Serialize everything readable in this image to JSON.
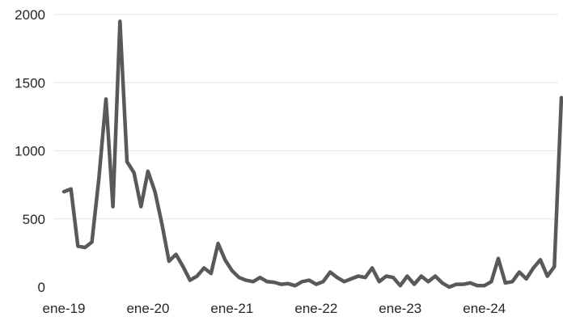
{
  "chart_data": {
    "type": "line",
    "title": "",
    "xlabel": "",
    "ylabel": "",
    "ylim": [
      0,
      2000
    ],
    "y_ticks": [
      0,
      500,
      1000,
      1500,
      2000
    ],
    "grid": true,
    "legend": "none",
    "line_color": "#595959",
    "x_tick_labels": [
      {
        "label": "ene-19",
        "index": 0
      },
      {
        "label": "ene-20",
        "index": 12
      },
      {
        "label": "ene-21",
        "index": 24
      },
      {
        "label": "ene-22",
        "index": 36
      },
      {
        "label": "ene-23",
        "index": 48
      },
      {
        "label": "ene-24",
        "index": 60
      }
    ],
    "series": [
      {
        "values": [
          700,
          720,
          300,
          290,
          330,
          800,
          1380,
          590,
          1950,
          920,
          840,
          590,
          850,
          700,
          460,
          190,
          240,
          150,
          50,
          80,
          140,
          100,
          320,
          200,
          120,
          70,
          50,
          40,
          70,
          40,
          35,
          20,
          25,
          10,
          40,
          50,
          20,
          40,
          110,
          70,
          40,
          60,
          80,
          70,
          140,
          40,
          80,
          70,
          10,
          80,
          20,
          80,
          40,
          80,
          30,
          0,
          20,
          20,
          30,
          10,
          10,
          40,
          210,
          30,
          40,
          110,
          60,
          140,
          200,
          80,
          150,
          1390
        ]
      }
    ]
  }
}
